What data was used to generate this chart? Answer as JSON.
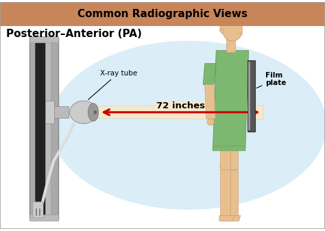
{
  "title": "Common Radiographic Views",
  "subtitle": "Posterior–Anterior (PA)",
  "title_bg": "#C8855A",
  "title_color": "#000000",
  "main_bg": "#FFFFFF",
  "border_color": "#A0A0A0",
  "beam_color": "#F5E8CC",
  "beam_border": "#E8D4A0",
  "arrow_color": "#CC0000",
  "arrow_label": "72 inches",
  "xray_label": "X-ray tube",
  "film_label": "Film\nplate",
  "aura_color": "#B8DDF0",
  "skin_color": "#E8C090",
  "skin_edge": "#C8A070",
  "gown_color": "#7DB870",
  "gown_edge": "#5A9050",
  "hair_color": "#5A3015",
  "machine_dark": "#222222",
  "machine_mid": "#888888",
  "machine_light": "#CCCCCC",
  "machine_frame": "#AAAAAA",
  "tube_body": "#CCCCCC",
  "tube_face": "#999999",
  "film_plate_color": "#555555",
  "film_plate_edge": "#333333",
  "subtitle_fontsize": 11,
  "title_fontsize": 11,
  "xlim": [
    0,
    10
  ],
  "ylim": [
    0,
    7
  ]
}
